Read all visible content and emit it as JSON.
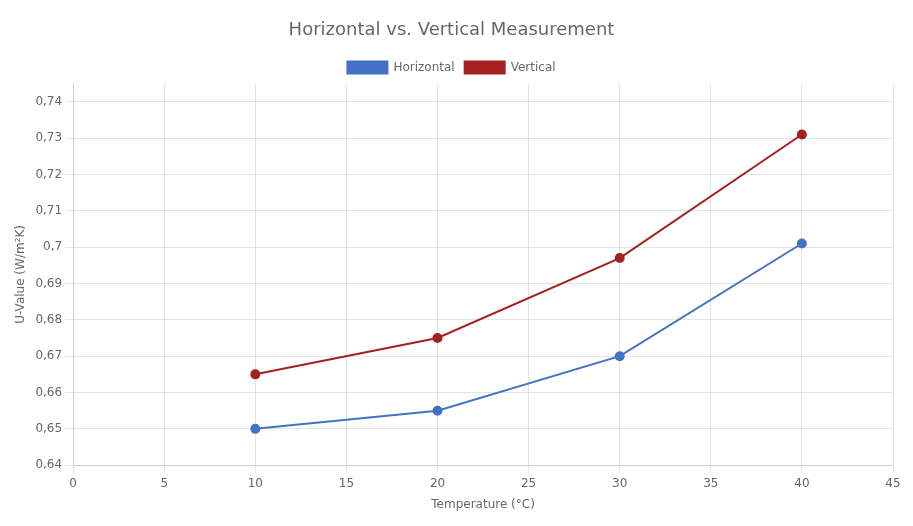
{
  "chart_data": {
    "type": "line",
    "title": "Horizontal vs. Vertical Measurement",
    "xlabel": "Temperature (°C)",
    "ylabel": "U-Value (W/m²K)",
    "x": [
      10,
      20,
      30,
      40
    ],
    "series": [
      {
        "name": "Horizontal",
        "color": "#4472C4",
        "values": [
          0.65,
          0.655,
          0.67,
          0.701
        ],
        "marker": "circle"
      },
      {
        "name": "Vertical",
        "color": "#A52020",
        "values": [
          0.665,
          0.675,
          0.697,
          0.731
        ],
        "marker": "circle"
      }
    ],
    "xlim": [
      0,
      45
    ],
    "xticks": [
      0,
      5,
      10,
      15,
      20,
      25,
      30,
      35,
      40,
      45
    ],
    "ylim": [
      0.64,
      0.745
    ],
    "yticks": [
      {
        "value": 0.64,
        "label": "0,64"
      },
      {
        "value": 0.65,
        "label": "0,65"
      },
      {
        "value": 0.66,
        "label": "0,66"
      },
      {
        "value": 0.67,
        "label": "0,67"
      },
      {
        "value": 0.68,
        "label": "0,68"
      },
      {
        "value": 0.69,
        "label": "0,69"
      },
      {
        "value": 0.7,
        "label": "0,7"
      },
      {
        "value": 0.71,
        "label": "0,71"
      },
      {
        "value": 0.72,
        "label": "0,72"
      },
      {
        "value": 0.73,
        "label": "0,73"
      },
      {
        "value": 0.74,
        "label": "0,74"
      }
    ],
    "grid": true,
    "legend": "top"
  }
}
